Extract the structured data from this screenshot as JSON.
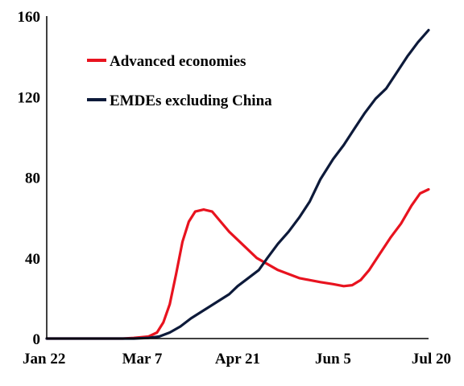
{
  "chart_data": {
    "type": "line",
    "title": "",
    "xlabel": "",
    "ylabel": "",
    "x_tick_labels": [
      "Jan 22",
      "Mar 7",
      "Apr 21",
      "Jun 5",
      "Jul 20"
    ],
    "ylim": [
      0,
      160
    ],
    "y_ticks": [
      0,
      40,
      80,
      120,
      160
    ],
    "grid": false,
    "legend_position": "top-left",
    "series": [
      {
        "name": "Advanced economies",
        "color": "#e8131f",
        "points": [
          [
            "Jan 22",
            0
          ],
          [
            "Feb 21",
            0
          ],
          [
            "Feb 27",
            0
          ],
          [
            "Mar 3",
            0.3
          ],
          [
            "Mar 10",
            1
          ],
          [
            "Mar 14",
            3
          ],
          [
            "Mar 17",
            8
          ],
          [
            "Mar 20",
            17
          ],
          [
            "Mar 23",
            32
          ],
          [
            "Mar 26",
            48
          ],
          [
            "Mar 29",
            58
          ],
          [
            "Apr 1",
            63
          ],
          [
            "Apr 5",
            64
          ],
          [
            "Apr 9",
            63
          ],
          [
            "Apr 13",
            58
          ],
          [
            "Apr 17",
            53
          ],
          [
            "Apr 21",
            49
          ],
          [
            "Apr 25",
            45
          ],
          [
            "Apr 30",
            40
          ],
          [
            "May 5",
            37
          ],
          [
            "May 10",
            34
          ],
          [
            "May 15",
            32
          ],
          [
            "May 20",
            30
          ],
          [
            "May 25",
            29
          ],
          [
            "May 30",
            28
          ],
          [
            "Jun 5",
            27
          ],
          [
            "Jun 10",
            26
          ],
          [
            "Jun 14",
            26.5
          ],
          [
            "Jun 18",
            29
          ],
          [
            "Jun 22",
            34
          ],
          [
            "Jun 27",
            42
          ],
          [
            "Jul 2",
            50
          ],
          [
            "Jul 7",
            57
          ],
          [
            "Jul 12",
            66
          ],
          [
            "Jul 16",
            72
          ],
          [
            "Jul 20",
            74
          ]
        ]
      },
      {
        "name": "EMDEs excluding China",
        "color": "#0d1a3a",
        "points": [
          [
            "Jan 22",
            0
          ],
          [
            "Mar 3",
            0
          ],
          [
            "Mar 10",
            0.3
          ],
          [
            "Mar 15",
            1
          ],
          [
            "Mar 20",
            3
          ],
          [
            "Mar 25",
            6
          ],
          [
            "Mar 30",
            10
          ],
          [
            "Apr 5",
            14
          ],
          [
            "Apr 11",
            18
          ],
          [
            "Apr 17",
            22
          ],
          [
            "Apr 21",
            26
          ],
          [
            "Apr 26",
            30
          ],
          [
            "May 1",
            34
          ],
          [
            "May 5",
            40
          ],
          [
            "May 10",
            47
          ],
          [
            "May 15",
            53
          ],
          [
            "May 20",
            60
          ],
          [
            "May 25",
            68
          ],
          [
            "May 30",
            79
          ],
          [
            "Jun 5",
            89
          ],
          [
            "Jun 10",
            96
          ],
          [
            "Jun 15",
            104
          ],
          [
            "Jun 20",
            112
          ],
          [
            "Jun 25",
            119
          ],
          [
            "Jun 30",
            124
          ],
          [
            "Jul 5",
            132
          ],
          [
            "Jul 10",
            140
          ],
          [
            "Jul 15",
            147
          ],
          [
            "Jul 20",
            153
          ]
        ]
      }
    ]
  }
}
